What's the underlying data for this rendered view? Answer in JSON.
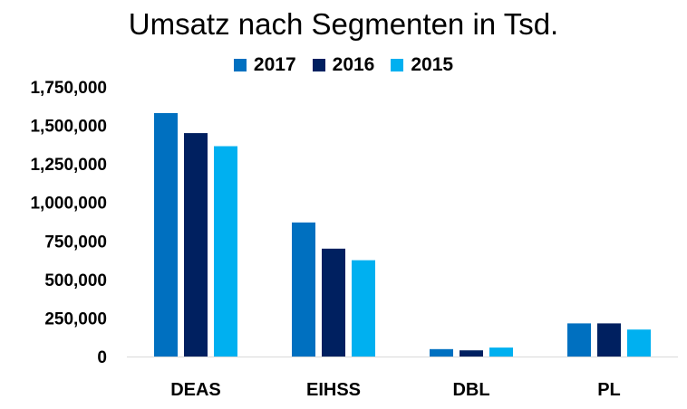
{
  "chart_data": {
    "type": "bar",
    "title": "Umsatz nach Segmenten in Tsd.",
    "categories": [
      "DEAS",
      "EIHSS",
      "DBL",
      "PL"
    ],
    "series": [
      {
        "name": "2017",
        "color": "#0070c0",
        "values": [
          1580000,
          870000,
          48000,
          215000
        ]
      },
      {
        "name": "2016",
        "color": "#002060",
        "values": [
          1450000,
          700000,
          40000,
          215000
        ]
      },
      {
        "name": "2015",
        "color": "#00b0f0",
        "values": [
          1365000,
          625000,
          58000,
          175000
        ]
      }
    ],
    "yticks": [
      "0",
      "250,000",
      "500,000",
      "750,000",
      "1,000,000",
      "1,250,000",
      "1,500,000",
      "1,750,000"
    ],
    "ylim": [
      0,
      1750000
    ],
    "legend_position": "top",
    "grid": false,
    "xlabel": "",
    "ylabel": ""
  }
}
